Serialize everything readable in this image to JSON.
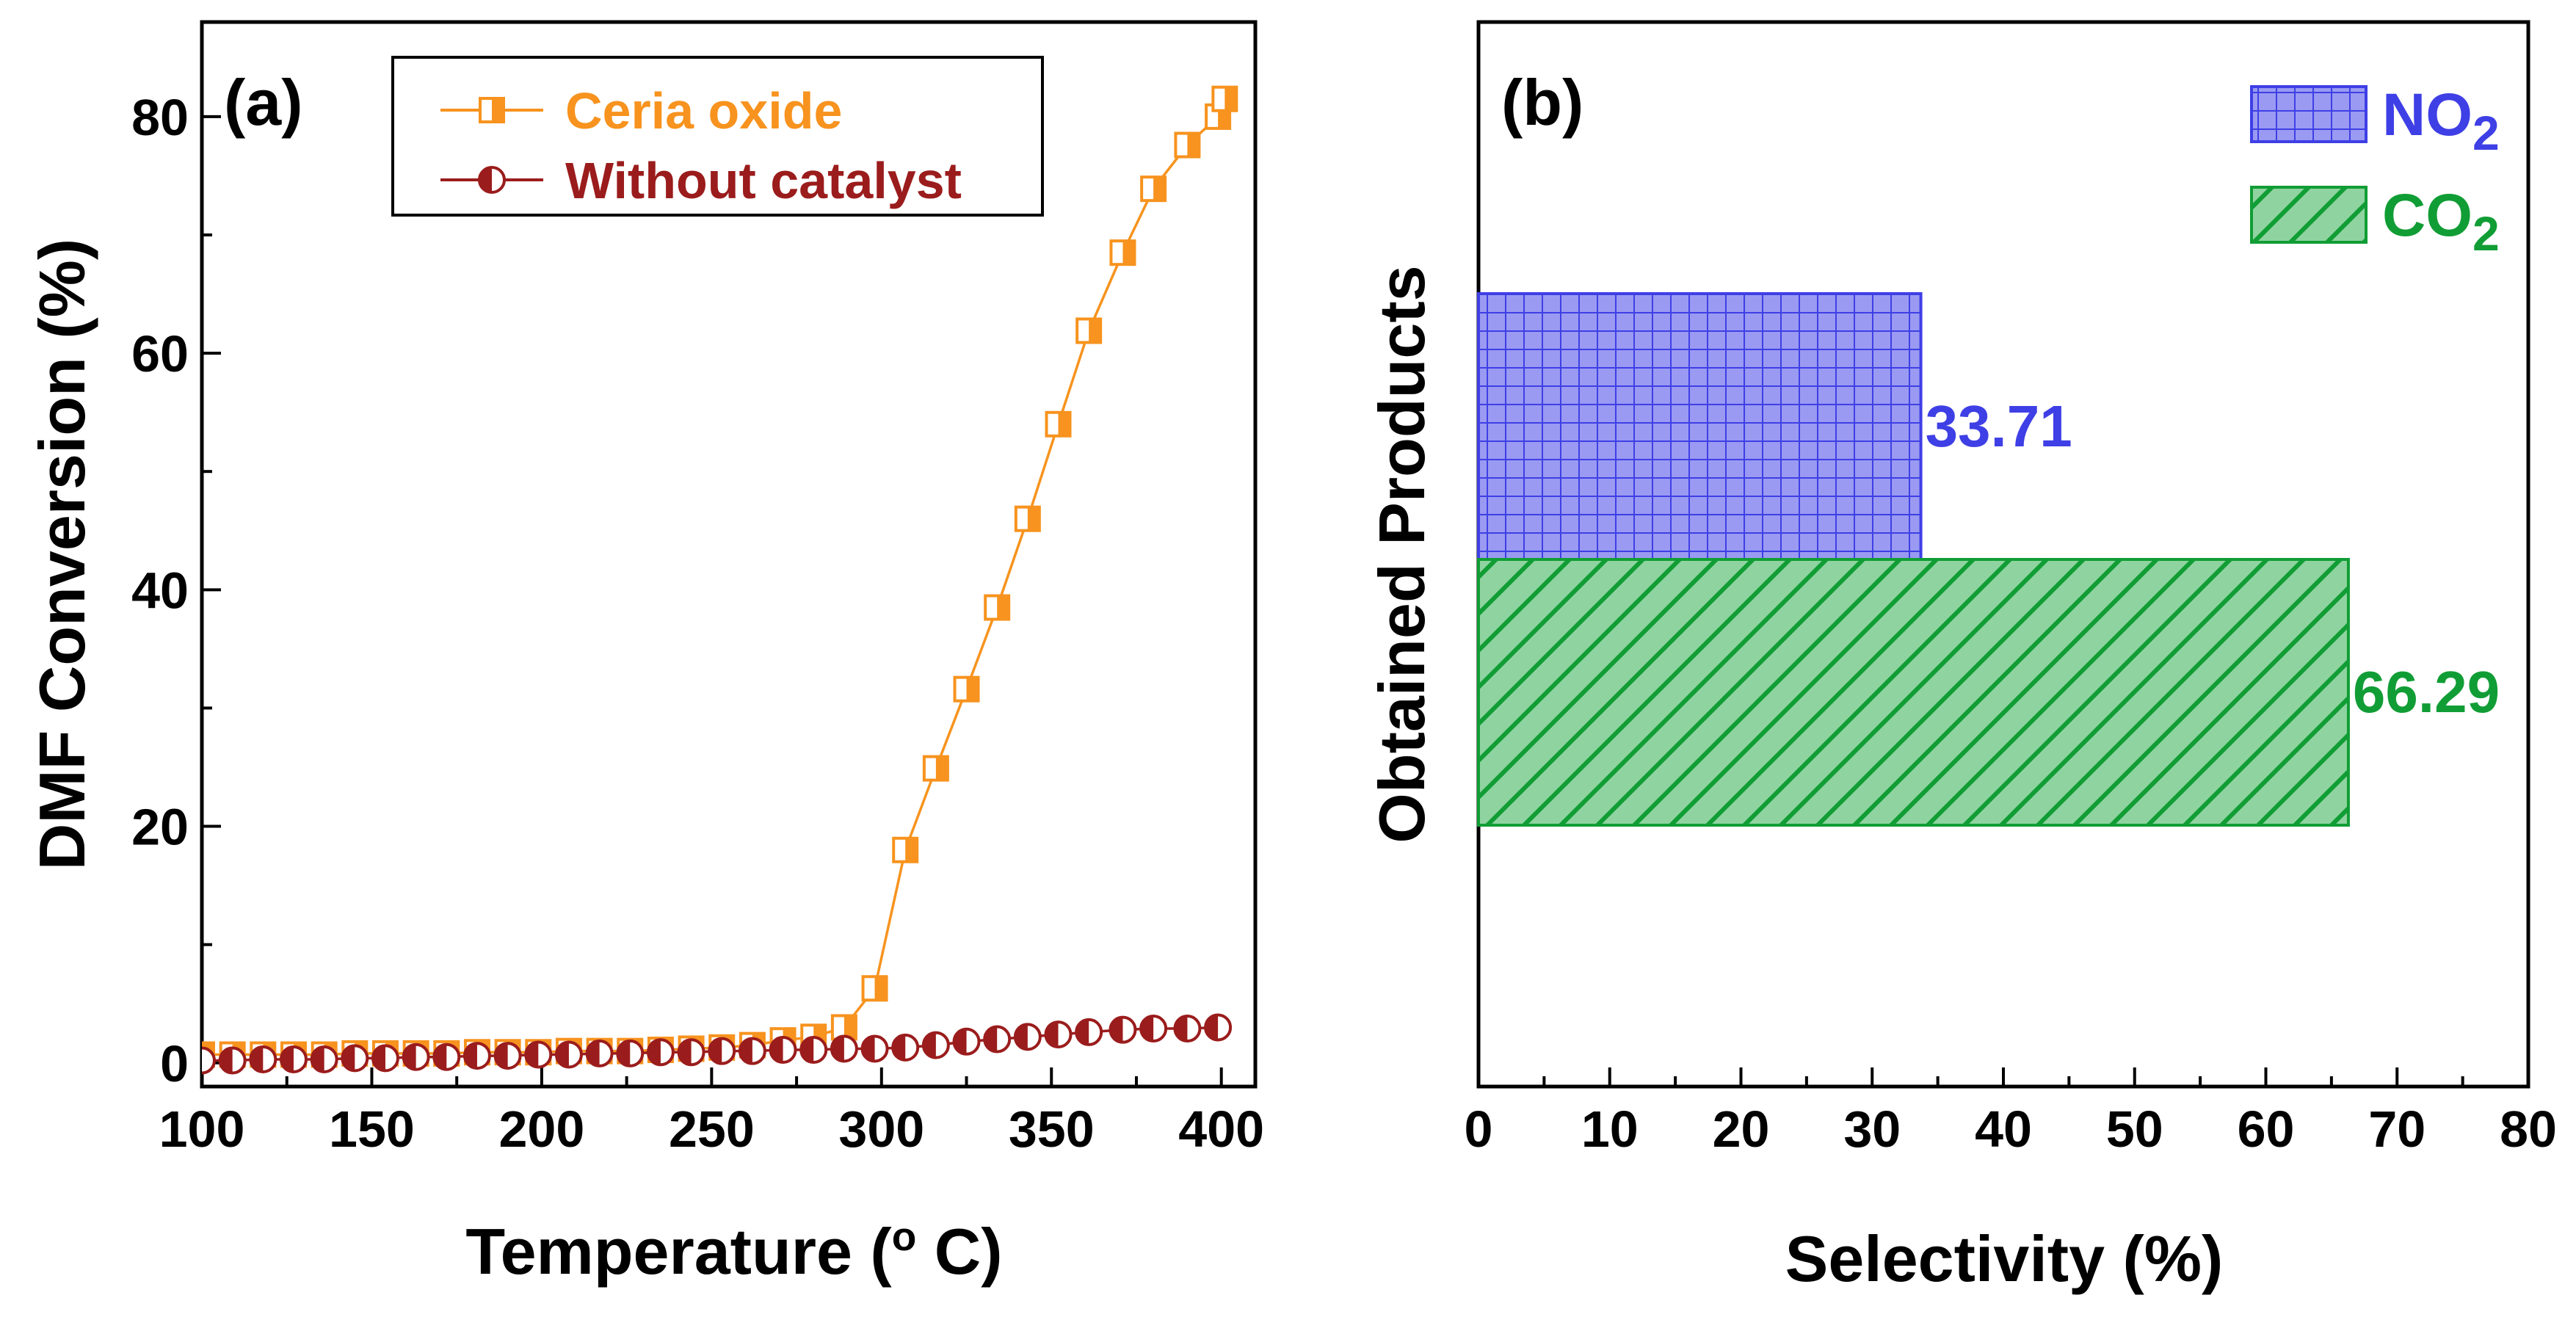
{
  "chart_data": [
    {
      "panel": "(a)",
      "type": "line",
      "xlabel_main": "Temperature (",
      "xlabel_sup": "o",
      "xlabel_end": " C)",
      "ylabel": "DMF Conversion (%)",
      "xlim": [
        100,
        410
      ],
      "ylim": [
        -2,
        88
      ],
      "xticks": [
        100,
        150,
        200,
        250,
        300,
        350,
        400
      ],
      "yticks": [
        0,
        20,
        40,
        60,
        80
      ],
      "series": [
        {
          "name": "Ceria oxide",
          "color": "#f7931e",
          "marker": "half-filled-square",
          "x": [
            100,
            109,
            118,
            127,
            136,
            145,
            154,
            163,
            172,
            181,
            190,
            199,
            208,
            217,
            226,
            235,
            244,
            253,
            262,
            271,
            280,
            289,
            298,
            307,
            316,
            325,
            334,
            343,
            352,
            361,
            371,
            380,
            390,
            399,
            401
          ],
          "y": [
            0.7,
            0.7,
            0.7,
            0.7,
            0.7,
            0.8,
            0.8,
            0.8,
            0.8,
            0.9,
            0.9,
            0.9,
            1.0,
            1.0,
            1.0,
            1.1,
            1.2,
            1.3,
            1.5,
            1.9,
            2.2,
            3.0,
            6.3,
            18.0,
            24.9,
            31.6,
            38.5,
            46.0,
            54.0,
            61.9,
            68.5,
            73.9,
            77.6,
            80.0,
            81.5
          ]
        },
        {
          "name": "Without catalyst",
          "color": "#9b1c1c",
          "marker": "half-filled-circle",
          "x": [
            100,
            109,
            118,
            127,
            136,
            145,
            154,
            163,
            172,
            181,
            190,
            199,
            208,
            217,
            226,
            235,
            244,
            253,
            262,
            271,
            280,
            289,
            298,
            307,
            316,
            325,
            334,
            343,
            352,
            361,
            371,
            380,
            390,
            399
          ],
          "y": [
            0.2,
            0.2,
            0.3,
            0.3,
            0.3,
            0.4,
            0.4,
            0.5,
            0.5,
            0.6,
            0.6,
            0.7,
            0.7,
            0.8,
            0.8,
            0.9,
            0.9,
            1.0,
            1.0,
            1.1,
            1.1,
            1.2,
            1.2,
            1.3,
            1.5,
            1.8,
            2.0,
            2.2,
            2.4,
            2.6,
            2.8,
            2.9,
            2.9,
            3.0
          ]
        }
      ]
    },
    {
      "panel": "(b)",
      "type": "bar",
      "orientation": "horizontal",
      "xlabel": "Selectivity (%)",
      "ylabel": "Obtained Products",
      "xlim": [
        0,
        80
      ],
      "xticks": [
        0,
        10,
        20,
        30,
        40,
        50,
        60,
        70,
        80
      ],
      "bars": [
        {
          "name": "NO",
          "sub": "2",
          "value": 33.71,
          "label": "33.71",
          "color": "#3f3fe6",
          "fill": "#9a9af2",
          "pattern": "grid"
        },
        {
          "name": "CO",
          "sub": "2",
          "value": 66.29,
          "label": "66.29",
          "color": "#119d35",
          "fill": "#8fd4a0",
          "pattern": "diagonal"
        }
      ]
    }
  ]
}
